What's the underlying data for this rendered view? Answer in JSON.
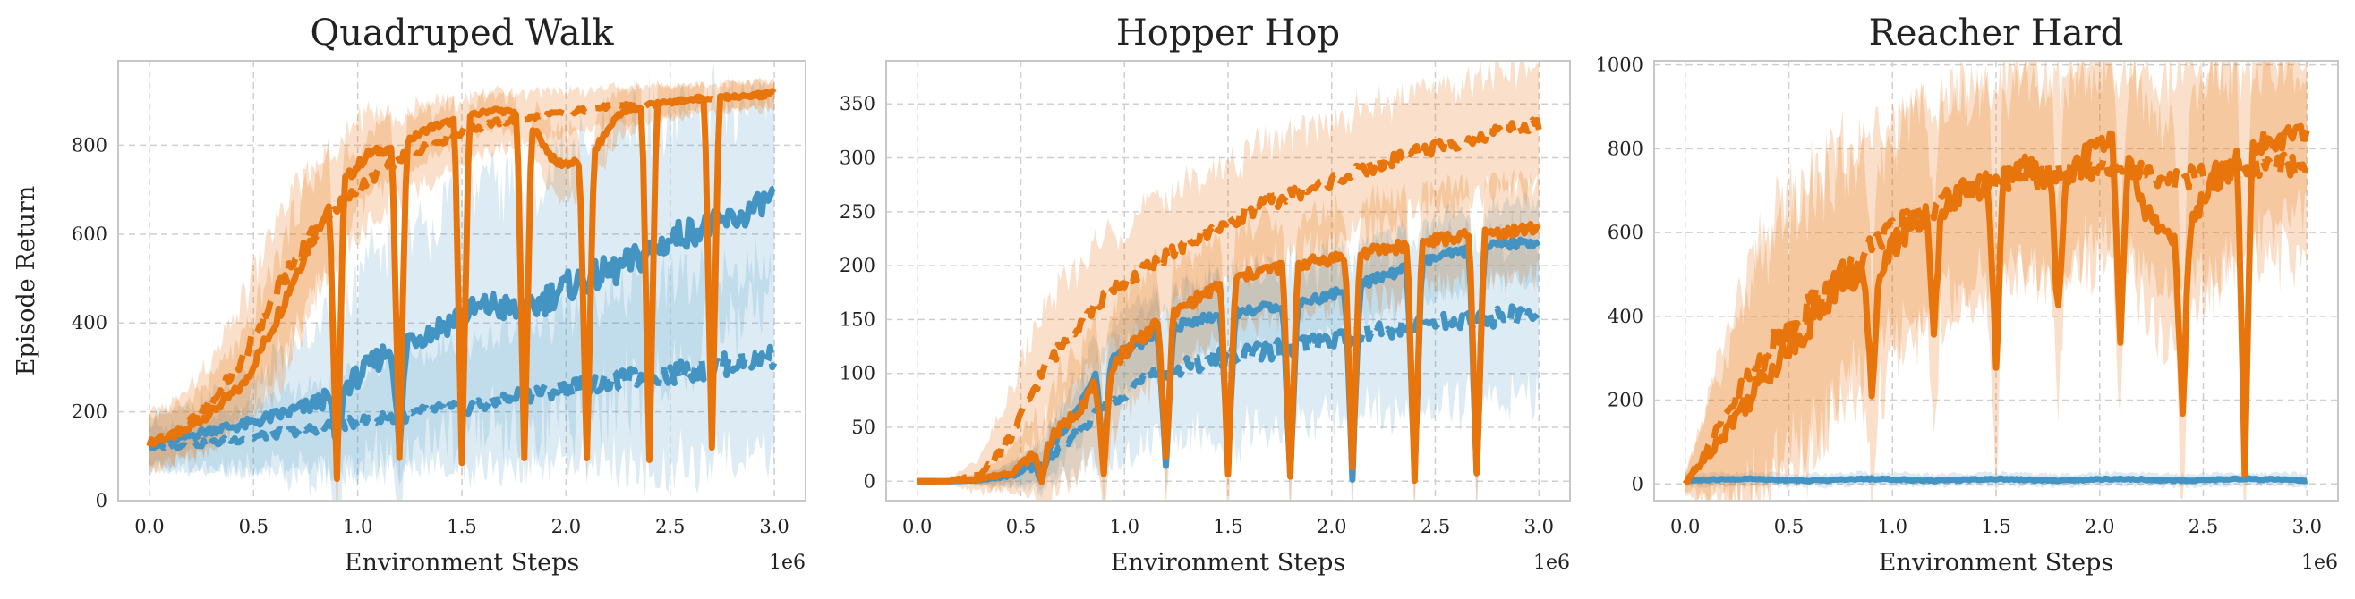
{
  "colors": {
    "blue": "#4393c3",
    "orange": "#e8740c",
    "grid": "#cfcfcf",
    "frame": "#c8c8c8"
  },
  "chart_data": [
    {
      "type": "line",
      "title": "Quadruped Walk",
      "xlabel": "Environment Steps",
      "ylabel": "Episode Return",
      "x_offset_label": "1e6",
      "xlim": [
        -0.15,
        3.15
      ],
      "ylim": [
        0,
        990
      ],
      "xticks": [
        0.0,
        0.5,
        1.0,
        1.5,
        2.0,
        2.5,
        3.0
      ],
      "xtick_labels": [
        "0.0",
        "0.5",
        "1.0",
        "1.5",
        "2.0",
        "2.5",
        "3.0"
      ],
      "yticks": [
        0,
        200,
        400,
        600,
        800
      ],
      "ytick_labels": [
        "0",
        "200",
        "400",
        "600",
        "800"
      ],
      "grid": true,
      "dip_x": [
        0.9,
        1.2,
        1.5,
        1.8,
        2.1,
        2.4,
        2.7
      ],
      "series": [
        {
          "color": "orange",
          "style": "solid",
          "x": [
            0.0,
            0.15,
            0.3,
            0.45,
            0.6,
            0.75,
            0.9,
            1.05,
            1.2,
            1.35,
            1.5,
            1.65,
            1.8,
            1.95,
            2.1,
            2.25,
            2.4,
            2.55,
            2.7,
            2.85,
            3.0
          ],
          "y": [
            130,
            150,
            200,
            260,
            400,
            560,
            700,
            780,
            800,
            840,
            860,
            880,
            870,
            760,
            760,
            870,
            890,
            900,
            910,
            910,
            920
          ],
          "band": [
            60,
            60,
            80,
            100,
            140,
            150,
            120,
            90,
            70,
            60,
            50,
            40,
            50,
            80,
            80,
            50,
            40,
            30,
            30,
            30,
            30
          ],
          "dip_depth": [
            660,
            700,
            780,
            780,
            660,
            800,
            790
          ]
        },
        {
          "color": "orange",
          "style": "dashed",
          "x": [
            0.0,
            0.15,
            0.3,
            0.45,
            0.6,
            0.75,
            0.9,
            1.05,
            1.2,
            1.35,
            1.5,
            1.65,
            1.8,
            1.95,
            2.1,
            2.25,
            2.4,
            2.55,
            2.7,
            2.85,
            3.0
          ],
          "y": [
            130,
            160,
            220,
            320,
            460,
            580,
            660,
            720,
            770,
            800,
            830,
            850,
            860,
            870,
            880,
            890,
            890,
            900,
            905,
            910,
            910
          ],
          "band": [
            60,
            70,
            90,
            130,
            160,
            150,
            120,
            100,
            90,
            80,
            70,
            60,
            55,
            50,
            45,
            40,
            40,
            35,
            30,
            30,
            30
          ],
          "dip_depth": [
            0,
            0,
            0,
            0,
            0,
            0,
            0
          ]
        },
        {
          "color": "blue",
          "style": "solid",
          "x": [
            0.0,
            0.15,
            0.3,
            0.45,
            0.6,
            0.75,
            0.9,
            1.05,
            1.2,
            1.35,
            1.5,
            1.65,
            1.8,
            1.95,
            2.1,
            2.25,
            2.4,
            2.55,
            2.7,
            2.85,
            3.0
          ],
          "y": [
            130,
            140,
            160,
            170,
            190,
            210,
            240,
            300,
            360,
            380,
            420,
            440,
            420,
            470,
            500,
            520,
            560,
            600,
            620,
            640,
            690
          ],
          "band": [
            60,
            60,
            80,
            100,
            120,
            150,
            180,
            220,
            240,
            250,
            260,
            270,
            280,
            290,
            290,
            300,
            300,
            280,
            260,
            240,
            200
          ],
          "dip_depth": [
            120,
            250,
            0,
            0,
            0,
            0,
            0
          ]
        },
        {
          "color": "blue",
          "style": "dashed",
          "x": [
            0.0,
            0.15,
            0.3,
            0.45,
            0.6,
            0.75,
            0.9,
            1.05,
            1.2,
            1.35,
            1.5,
            1.65,
            1.8,
            1.95,
            2.1,
            2.25,
            2.4,
            2.55,
            2.7,
            2.85,
            3.0
          ],
          "y": [
            120,
            125,
            130,
            140,
            150,
            160,
            170,
            180,
            190,
            200,
            210,
            220,
            240,
            250,
            260,
            270,
            280,
            290,
            300,
            315,
            325
          ],
          "band": [
            50,
            50,
            60,
            70,
            80,
            90,
            100,
            110,
            120,
            130,
            140,
            150,
            160,
            170,
            180,
            190,
            200,
            210,
            210,
            210,
            210
          ],
          "dip_depth": [
            0,
            0,
            0,
            0,
            0,
            0,
            0
          ]
        }
      ]
    },
    {
      "type": "line",
      "title": "Hopper Hop",
      "xlabel": "Environment Steps",
      "ylabel": "",
      "x_offset_label": "1e6",
      "xlim": [
        -0.15,
        3.15
      ],
      "ylim": [
        -18,
        390
      ],
      "xticks": [
        0.0,
        0.5,
        1.0,
        1.5,
        2.0,
        2.5,
        3.0
      ],
      "xtick_labels": [
        "0.0",
        "0.5",
        "1.0",
        "1.5",
        "2.0",
        "2.5",
        "3.0"
      ],
      "yticks": [
        0,
        50,
        100,
        150,
        200,
        250,
        300,
        350
      ],
      "ytick_labels": [
        "0",
        "50",
        "100",
        "150",
        "200",
        "250",
        "300",
        "350"
      ],
      "grid": true,
      "dip_x": [
        0.6,
        0.9,
        1.2,
        1.5,
        1.8,
        2.1,
        2.4,
        2.7
      ],
      "series": [
        {
          "color": "orange",
          "style": "solid",
          "x": [
            0.0,
            0.15,
            0.3,
            0.45,
            0.6,
            0.75,
            0.9,
            1.05,
            1.2,
            1.35,
            1.5,
            1.65,
            1.8,
            1.95,
            2.1,
            2.25,
            2.4,
            2.55,
            2.7,
            2.85,
            3.0
          ],
          "y": [
            0,
            0,
            2,
            8,
            30,
            60,
            100,
            130,
            150,
            170,
            185,
            195,
            200,
            205,
            210,
            215,
            220,
            225,
            228,
            232,
            235
          ],
          "band": [
            0,
            1,
            5,
            20,
            40,
            55,
            60,
            55,
            50,
            45,
            45,
            45,
            45,
            45,
            45,
            45,
            45,
            45,
            45,
            45,
            45
          ],
          "dip_depth": [
            30,
            100,
            130,
            180,
            200,
            200,
            215,
            225
          ]
        },
        {
          "color": "orange",
          "style": "dashed",
          "x": [
            0.0,
            0.15,
            0.3,
            0.45,
            0.6,
            0.75,
            0.9,
            1.05,
            1.2,
            1.35,
            1.5,
            1.65,
            1.8,
            1.95,
            2.1,
            2.25,
            2.4,
            2.55,
            2.7,
            2.85,
            3.0
          ],
          "y": [
            0,
            0,
            5,
            40,
            100,
            140,
            170,
            190,
            210,
            225,
            240,
            255,
            265,
            275,
            285,
            295,
            305,
            312,
            318,
            325,
            330
          ],
          "band": [
            0,
            2,
            15,
            40,
            55,
            55,
            55,
            55,
            55,
            55,
            55,
            55,
            55,
            55,
            55,
            55,
            55,
            55,
            55,
            55,
            55
          ],
          "dip_depth": [
            0,
            0,
            0,
            0,
            0,
            0,
            0,
            0
          ]
        },
        {
          "color": "blue",
          "style": "solid",
          "x": [
            0.0,
            0.15,
            0.3,
            0.45,
            0.6,
            0.75,
            0.9,
            1.05,
            1.2,
            1.35,
            1.5,
            1.65,
            1.8,
            1.95,
            2.1,
            2.25,
            2.4,
            2.55,
            2.7,
            2.85,
            3.0
          ],
          "y": [
            0,
            0,
            1,
            5,
            20,
            60,
            110,
            125,
            140,
            150,
            155,
            160,
            165,
            170,
            180,
            190,
            200,
            210,
            215,
            220,
            222
          ],
          "band": [
            0,
            1,
            3,
            10,
            20,
            30,
            35,
            35,
            35,
            35,
            35,
            35,
            35,
            35,
            35,
            35,
            35,
            35,
            35,
            35,
            35
          ],
          "dip_depth": [
            20,
            100,
            125,
            125,
            160,
            175,
            190,
            210
          ]
        },
        {
          "color": "blue",
          "style": "dashed",
          "x": [
            0.0,
            0.15,
            0.3,
            0.45,
            0.6,
            0.75,
            0.9,
            1.05,
            1.2,
            1.35,
            1.5,
            1.65,
            1.8,
            1.95,
            2.1,
            2.25,
            2.4,
            2.55,
            2.7,
            2.85,
            3.0
          ],
          "y": [
            0,
            0,
            1,
            5,
            15,
            40,
            70,
            90,
            100,
            110,
            115,
            120,
            125,
            130,
            135,
            140,
            145,
            148,
            150,
            153,
            155
          ],
          "band": [
            0,
            1,
            5,
            10,
            20,
            35,
            50,
            60,
            65,
            70,
            75,
            75,
            75,
            75,
            75,
            75,
            75,
            75,
            75,
            75,
            75
          ],
          "dip_depth": [
            0,
            0,
            0,
            0,
            0,
            0,
            0,
            0
          ]
        }
      ]
    },
    {
      "type": "line",
      "title": "Reacher Hard",
      "xlabel": "Environment Steps",
      "ylabel": "",
      "x_offset_label": "1e6",
      "xlim": [
        -0.15,
        3.15
      ],
      "ylim": [
        -40,
        1010
      ],
      "xticks": [
        0.0,
        0.5,
        1.0,
        1.5,
        2.0,
        2.5,
        3.0
      ],
      "xtick_labels": [
        "0.0",
        "0.5",
        "1.0",
        "1.5",
        "2.0",
        "2.5",
        "3.0"
      ],
      "yticks": [
        0,
        200,
        400,
        600,
        800,
        1000
      ],
      "ytick_labels": [
        "0",
        "200",
        "400",
        "600",
        "800",
        "1000"
      ],
      "grid": true,
      "dip_x": [
        0.9,
        1.2,
        1.5,
        1.8,
        2.1,
        2.4,
        2.7
      ],
      "series": [
        {
          "color": "orange",
          "style": "solid",
          "x": [
            0.0,
            0.15,
            0.3,
            0.45,
            0.6,
            0.75,
            0.9,
            1.05,
            1.2,
            1.35,
            1.5,
            1.65,
            1.8,
            1.95,
            2.1,
            2.25,
            2.4,
            2.55,
            2.7,
            2.85,
            3.0
          ],
          "y": [
            0,
            100,
            200,
            300,
            380,
            480,
            500,
            600,
            650,
            700,
            720,
            760,
            700,
            800,
            820,
            620,
            580,
            720,
            800,
            820,
            840
          ],
          "band": [
            20,
            150,
            250,
            300,
            300,
            280,
            280,
            270,
            260,
            250,
            250,
            240,
            240,
            220,
            220,
            240,
            260,
            250,
            220,
            200,
            180
          ],
          "dip_depth": [
            300,
            300,
            450,
            300,
            500,
            400,
            780
          ]
        },
        {
          "color": "orange",
          "style": "dashed",
          "x": [
            0.0,
            0.15,
            0.3,
            0.45,
            0.6,
            0.75,
            0.9,
            1.05,
            1.2,
            1.35,
            1.5,
            1.65,
            1.8,
            1.95,
            2.1,
            2.25,
            2.4,
            2.55,
            2.7,
            2.85,
            3.0
          ],
          "y": [
            0,
            120,
            250,
            350,
            430,
            500,
            560,
            620,
            660,
            700,
            720,
            730,
            740,
            750,
            760,
            740,
            730,
            740,
            750,
            760,
            760
          ],
          "band": [
            20,
            150,
            250,
            300,
            300,
            280,
            260,
            250,
            240,
            230,
            220,
            220,
            220,
            220,
            220,
            230,
            240,
            240,
            230,
            220,
            210
          ],
          "dip_depth": [
            0,
            0,
            0,
            0,
            0,
            0,
            0
          ]
        },
        {
          "color": "blue",
          "style": "solid",
          "x": [
            0.0,
            0.15,
            0.3,
            0.45,
            0.6,
            0.75,
            0.9,
            1.05,
            1.2,
            1.35,
            1.5,
            1.65,
            1.8,
            1.95,
            2.1,
            2.25,
            2.4,
            2.55,
            2.7,
            2.85,
            3.0
          ],
          "y": [
            8,
            10,
            12,
            10,
            8,
            10,
            12,
            10,
            8,
            10,
            12,
            10,
            8,
            10,
            12,
            10,
            8,
            10,
            12,
            10,
            8
          ],
          "band": [
            15,
            15,
            15,
            15,
            15,
            15,
            15,
            15,
            15,
            15,
            15,
            15,
            15,
            15,
            15,
            15,
            15,
            15,
            15,
            15,
            15
          ],
          "dip_depth": [
            0,
            0,
            0,
            0,
            0,
            0,
            0
          ]
        }
      ]
    }
  ]
}
